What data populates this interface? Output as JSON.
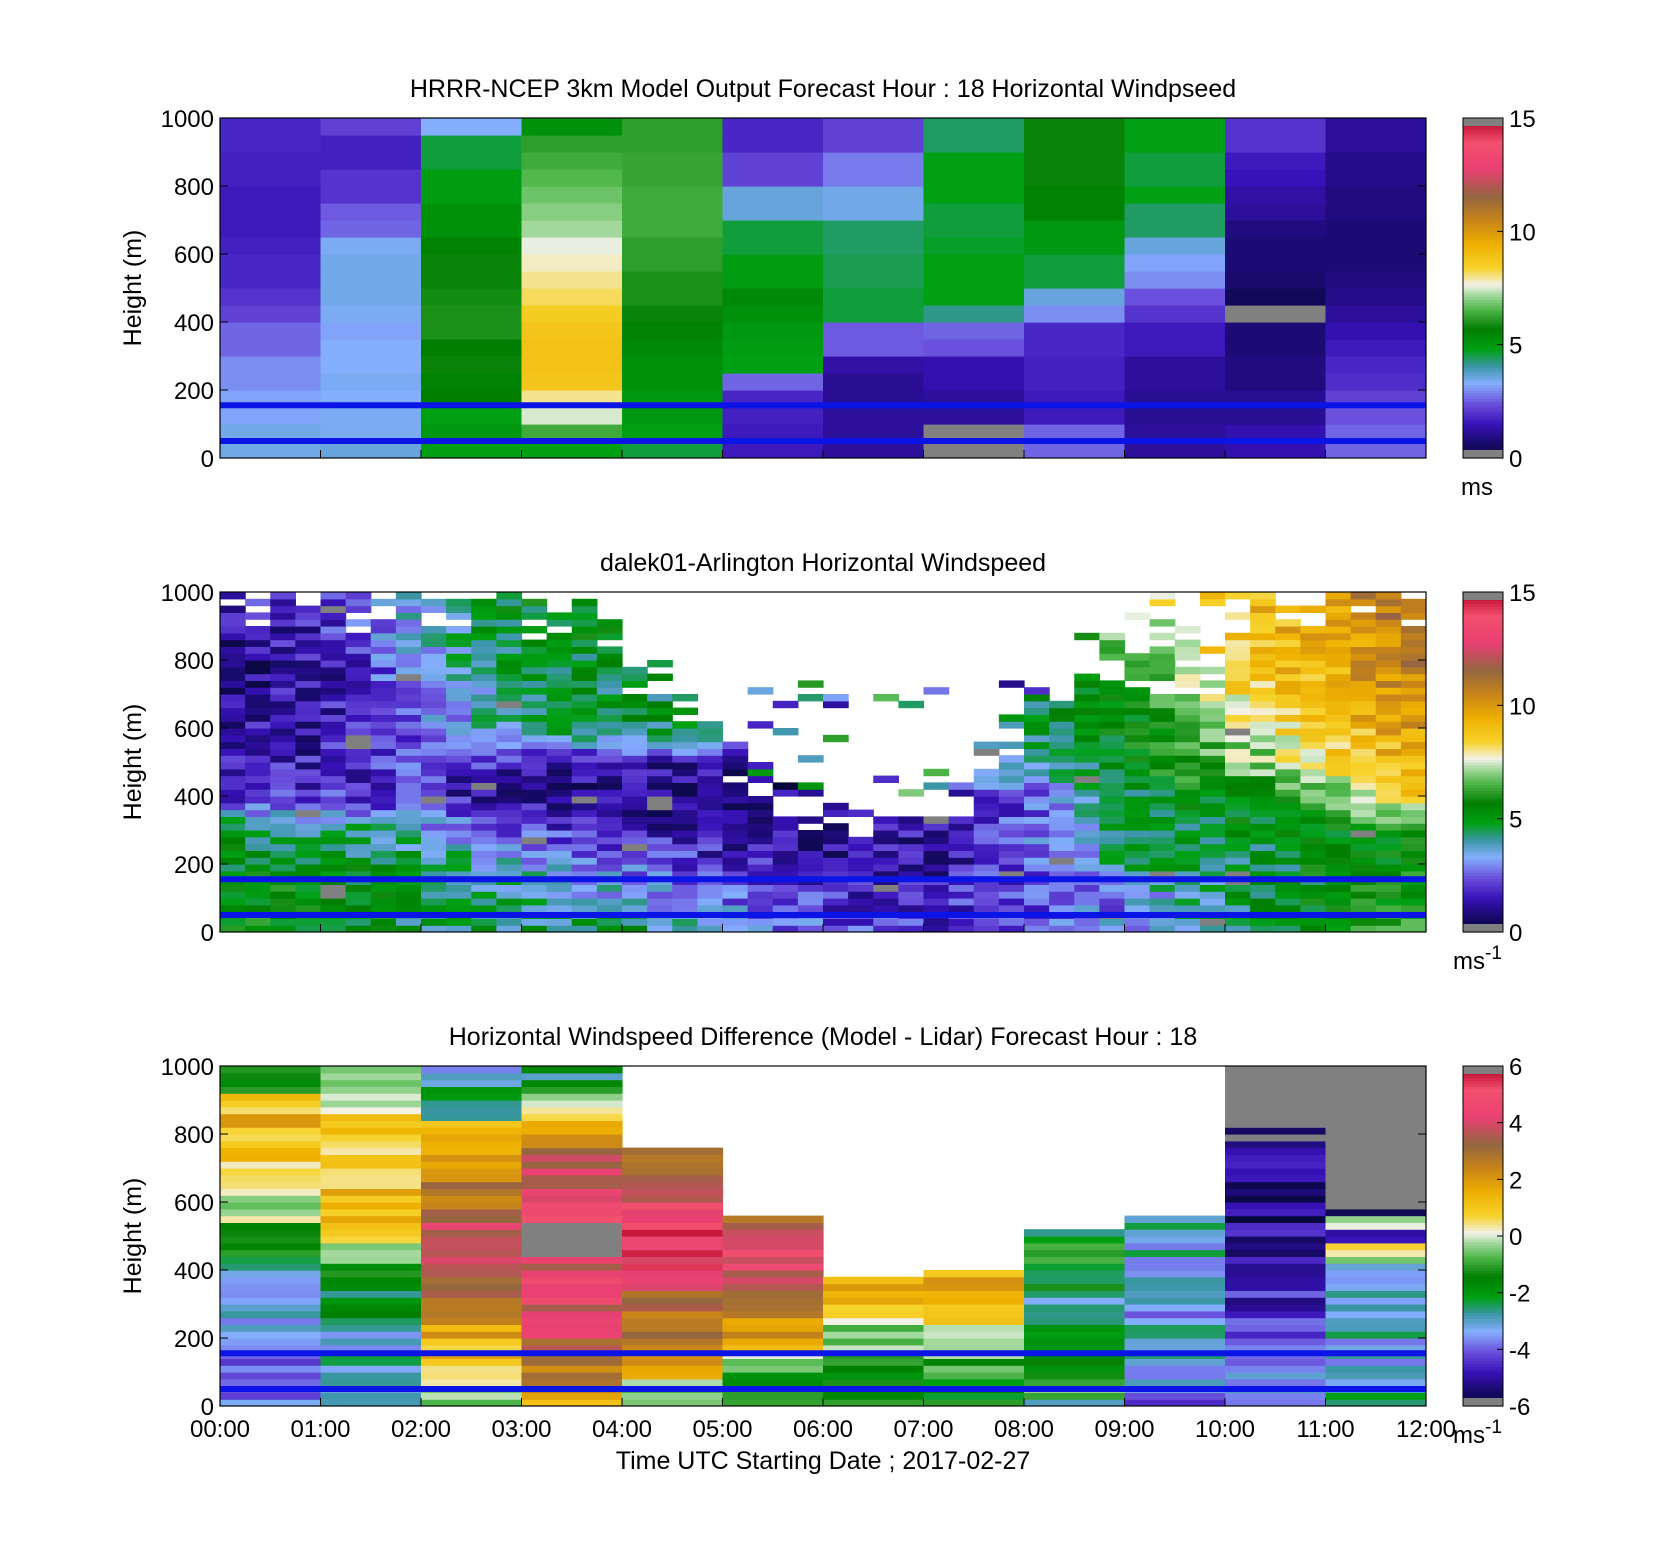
{
  "chart_data": [
    {
      "type": "heatmap",
      "title": "HRRR-NCEP 3km Model Output   Forecast Hour : 18 Horizontal Windpseed",
      "xlabel": "",
      "ylabel": "Height (m)",
      "xlim": [
        0,
        12
      ],
      "ylim": [
        0,
        1000
      ],
      "yticks": [
        "0",
        "200",
        "400",
        "600",
        "800",
        "1000"
      ],
      "xticks": [],
      "colorbar": {
        "min": 0,
        "max": 15,
        "ticks": [
          "0",
          "5",
          "10",
          "15"
        ],
        "unit": "ms",
        "unit_sup": ""
      },
      "reference_lines_m": [
        50,
        155
      ],
      "column_step_h": 1,
      "row_step_m": 50,
      "columns": [
        [
          3.5,
          3.5,
          3.2,
          3.2,
          3.0,
          3.0,
          2.6,
          2.6,
          2.2,
          2.0,
          1.8,
          1.8,
          1.7,
          1.6,
          1.6,
          1.6,
          1.7,
          1.7,
          1.8,
          1.8
        ],
        [
          3.6,
          3.4,
          3.4,
          3.3,
          3.4,
          3.3,
          3.3,
          3.2,
          3.4,
          3.5,
          3.5,
          3.5,
          3.4,
          2.6,
          2.5,
          2.0,
          2.0,
          1.7,
          1.7,
          2.2
        ],
        [
          4.8,
          5.0,
          4.8,
          5.7,
          5.6,
          5.8,
          5.7,
          6.0,
          6.0,
          5.9,
          5.8,
          5.8,
          5.6,
          5.2,
          5.2,
          4.9,
          4.9,
          4.6,
          4.6,
          3.3
        ],
        [
          4.8,
          6.4,
          7.5,
          8.0,
          8.8,
          8.9,
          8.9,
          8.8,
          8.6,
          8.2,
          8.0,
          7.8,
          7.6,
          7.2,
          7.0,
          6.8,
          6.6,
          6.4,
          6.2,
          5.2
        ],
        [
          4.6,
          4.8,
          5.0,
          5.0,
          5.2,
          5.2,
          5.4,
          5.6,
          5.8,
          6.0,
          6.0,
          6.2,
          6.2,
          6.4,
          6.4,
          6.4,
          6.3,
          6.3,
          6.2,
          6.2
        ],
        [
          1.6,
          1.6,
          1.7,
          1.8,
          2.6,
          4.8,
          4.9,
          5.0,
          5.2,
          5.4,
          4.9,
          4.9,
          4.6,
          4.6,
          3.6,
          3.6,
          2.2,
          2.2,
          1.8,
          1.8
        ],
        [
          1.2,
          1.2,
          1.2,
          1.1,
          1.1,
          1.3,
          2.5,
          2.5,
          4.6,
          4.6,
          4.5,
          4.5,
          4.4,
          4.4,
          3.5,
          3.5,
          2.8,
          2.8,
          2.2,
          2.2
        ],
        [
          -1,
          -1,
          1.2,
          1.2,
          1.4,
          1.4,
          2.4,
          2.6,
          4.2,
          4.8,
          4.8,
          4.8,
          4.7,
          4.6,
          4.6,
          4.8,
          4.8,
          4.8,
          4.4,
          4.4
        ],
        [
          2.6,
          2.6,
          1.6,
          1.6,
          1.7,
          1.7,
          1.8,
          1.8,
          3.0,
          3.6,
          4.6,
          4.6,
          5.0,
          5.0,
          5.6,
          5.6,
          5.8,
          5.8,
          5.8,
          5.8
        ],
        [
          1.2,
          1.2,
          1.1,
          1.1,
          1.2,
          1.2,
          1.6,
          1.6,
          2.0,
          2.4,
          3.0,
          3.2,
          3.6,
          4.4,
          4.4,
          4.8,
          4.6,
          4.6,
          4.8,
          4.8
        ],
        [
          1.4,
          1.4,
          1.1,
          1.1,
          0.9,
          0.9,
          0.8,
          0.8,
          -1,
          0.4,
          0.7,
          0.8,
          0.8,
          0.9,
          1.2,
          1.3,
          1.5,
          1.6,
          2.0,
          2.0
        ],
        [
          2.6,
          2.6,
          2.4,
          2.2,
          1.9,
          1.8,
          1.6,
          1.4,
          1.2,
          1.0,
          0.9,
          0.8,
          0.8,
          0.8,
          0.9,
          0.9,
          1.0,
          1.0,
          1.2,
          1.2
        ]
      ]
    },
    {
      "type": "heatmap",
      "title": "dalek01-Arlington  Horizontal Windspeed",
      "xlabel": "",
      "ylabel": "Height (m)",
      "xlim": [
        0,
        12
      ],
      "ylim": [
        0,
        1000
      ],
      "yticks": [
        "0",
        "200",
        "400",
        "600",
        "800",
        "1000"
      ],
      "xticks": [],
      "colorbar": {
        "min": 0,
        "max": 15,
        "ticks": [
          "0",
          "5",
          "10",
          "15"
        ],
        "unit": "ms",
        "unit_sup": "-1"
      },
      "reference_lines_m": [
        50,
        155
      ],
      "column_step_h": 0.25,
      "row_step_m": 20,
      "profile_keyframes": {
        "hours": [
          0,
          1,
          2,
          3,
          4,
          5,
          6,
          7,
          8,
          9,
          10,
          11,
          12
        ],
        "speeds": [
          [
            5.5,
            5.5,
            4.6,
            4.5,
            5.0,
            3.2,
            2.5,
            2.0,
            2.6,
            3.0,
            4.4,
            5.6,
            5.8
          ],
          [
            5.6,
            5.4,
            4.7,
            4.2,
            3.6,
            2.8,
            2.0,
            1.6,
            2.2,
            3.0,
            4.4,
            5.4,
            5.6
          ],
          [
            5.2,
            5.0,
            4.8,
            3.6,
            2.6,
            2.0,
            1.4,
            1.4,
            2.2,
            4.2,
            4.6,
            5.2,
            5.4
          ],
          [
            4.8,
            4.6,
            3.6,
            2.2,
            1.6,
            1.2,
            1.1,
            1.4,
            2.6,
            4.4,
            4.8,
            5.2,
            6.0
          ],
          [
            2.0,
            2.0,
            1.8,
            1.2,
            0.9,
            0.9,
            1.0,
            -2,
            2.2,
            4.8,
            5.6,
            6.8,
            8.6
          ],
          [
            1.4,
            1.6,
            2.2,
            1.6,
            1.3,
            1.2,
            -2,
            -2,
            3.8,
            5.4,
            6.6,
            8.0,
            9.4
          ],
          [
            1.2,
            1.4,
            2.6,
            4.4,
            4.6,
            4.8,
            -2,
            -2,
            4.8,
            5.2,
            7.2,
            8.6,
            10.2
          ],
          [
            0.9,
            1.4,
            3.2,
            4.8,
            5.0,
            -2,
            -2,
            -2,
            -2,
            6.0,
            8.6,
            9.4,
            11.0
          ],
          [
            1.8,
            2.0,
            4.0,
            5.2,
            5.2,
            -2,
            -2,
            -2,
            -2,
            7.0,
            9.0,
            9.6,
            11.6
          ]
        ],
        "top_m": [
          1000,
          1000,
          1000,
          990,
          960,
          590,
          385,
          375,
          680,
          1000,
          1000,
          1000,
          1000
        ],
        "height_levels_m": [
          0,
          100,
          200,
          300,
          400,
          500,
          600,
          800,
          1000
        ]
      }
    },
    {
      "type": "heatmap",
      "title": "Horizontal Windspeed Difference (Model - Lidar) Forecast Hour : 18",
      "xlabel": "Time UTC  Starting Date ; 2017-02-27",
      "ylabel": "Height (m)",
      "xlim": [
        0,
        12
      ],
      "ylim": [
        0,
        1000
      ],
      "yticks": [
        "0",
        "200",
        "400",
        "600",
        "800",
        "1000"
      ],
      "xticks": [
        "00:00",
        "01:00",
        "02:00",
        "03:00",
        "04:00",
        "05:00",
        "06:00",
        "07:00",
        "08:00",
        "09:00",
        "10:00",
        "11:00",
        "12:00"
      ],
      "colorbar": {
        "min": -6,
        "max": 6,
        "ticks": [
          "-6",
          "-4",
          "-2",
          "0",
          "2",
          "4",
          "6"
        ],
        "unit": "ms",
        "unit_sup": "-1"
      },
      "reference_lines_m": [
        50,
        155
      ],
      "column_step_h": 1,
      "row_step_m": 20,
      "columns": [
        {
          "top_m": 1000,
          "levels_m": [
            0,
            100,
            200,
            300,
            400,
            500,
            600,
            700,
            850,
            1000
          ],
          "values": [
            -3.8,
            -3.8,
            -3.4,
            -3.2,
            -2.8,
            -1.8,
            -0.2,
            1.0,
            1.3,
            -1.8
          ]
        },
        {
          "top_m": 1000,
          "levels_m": [
            0,
            50,
            100,
            200,
            300,
            400,
            500,
            600,
            700,
            850,
            1000
          ],
          "values": [
            -3.2,
            -3.2,
            -2.8,
            -3.0,
            -2.2,
            -1.2,
            0.8,
            1.2,
            1.1,
            0.6,
            0.0
          ]
        },
        {
          "top_m": 1000,
          "levels_m": [
            0,
            50,
            100,
            200,
            300,
            400,
            500,
            600,
            700,
            800,
            900,
            1000
          ],
          "values": [
            -0.5,
            -0.5,
            0.6,
            1.4,
            2.2,
            4.2,
            4.0,
            2.8,
            2.4,
            1.2,
            -2.2,
            -3.0
          ]
        },
        {
          "top_m": 1000,
          "levels_m": [
            0,
            50,
            100,
            200,
            300,
            400,
            500,
            600,
            700,
            800,
            900,
            1000
          ],
          "values": [
            1.4,
            2.6,
            2.6,
            3.6,
            4.2,
            4.2,
            -7,
            4.4,
            3.8,
            1.8,
            -1.0,
            -2.2
          ]
        },
        {
          "top_m": 760,
          "levels_m": [
            0,
            50,
            100,
            200,
            300,
            400,
            500,
            600,
            700,
            760
          ],
          "values": [
            0.2,
            0.0,
            1.4,
            2.6,
            3.0,
            4.6,
            5.2,
            4.4,
            3.4,
            2.6
          ]
        },
        {
          "top_m": 550,
          "levels_m": [
            0,
            50,
            100,
            200,
            300,
            400,
            500,
            550
          ],
          "values": [
            -1.2,
            -1.2,
            -1.0,
            2.2,
            2.6,
            4.4,
            4.2,
            3.0
          ]
        },
        {
          "top_m": 375,
          "levels_m": [
            0,
            100,
            200,
            300,
            375
          ],
          "values": [
            -1.6,
            -1.6,
            -0.6,
            1.0,
            1.4
          ]
        },
        {
          "top_m": 400,
          "levels_m": [
            0,
            100,
            200,
            300,
            400
          ],
          "values": [
            -1.6,
            -1.4,
            0.4,
            1.0,
            1.6
          ]
        },
        {
          "top_m": 510,
          "levels_m": [
            0,
            50,
            100,
            200,
            300,
            400,
            450,
            510
          ],
          "values": [
            -2.4,
            -0.8,
            -2.0,
            -2.4,
            -2.6,
            -1.8,
            -0.4,
            -2.0
          ]
        },
        {
          "top_m": 550,
          "levels_m": [
            0,
            100,
            200,
            300,
            400,
            500,
            550
          ],
          "values": [
            -3.8,
            -3.6,
            -3.2,
            -3.4,
            -3.2,
            -3.0,
            -2.6
          ]
        },
        {
          "top_m": 1000,
          "levels_m": [
            0,
            50,
            100,
            150,
            200,
            300,
            400,
            500,
            600,
            650,
            1000
          ],
          "values": [
            -3.2,
            -3.4,
            -3.4,
            -3.8,
            -4.2,
            -4.6,
            -4.8,
            -4.8,
            -5.2,
            -5.4,
            -7
          ]
        },
        {
          "top_m": 1000,
          "levels_m": [
            0,
            50,
            100,
            200,
            300,
            400,
            450,
            500,
            550,
            580,
            600,
            1000
          ],
          "values": [
            -2.6,
            -2.8,
            -3.2,
            -3.0,
            -2.8,
            -3.2,
            0.0,
            -5.0,
            0.2,
            -5.8,
            -7,
            -7
          ]
        }
      ]
    }
  ]
}
